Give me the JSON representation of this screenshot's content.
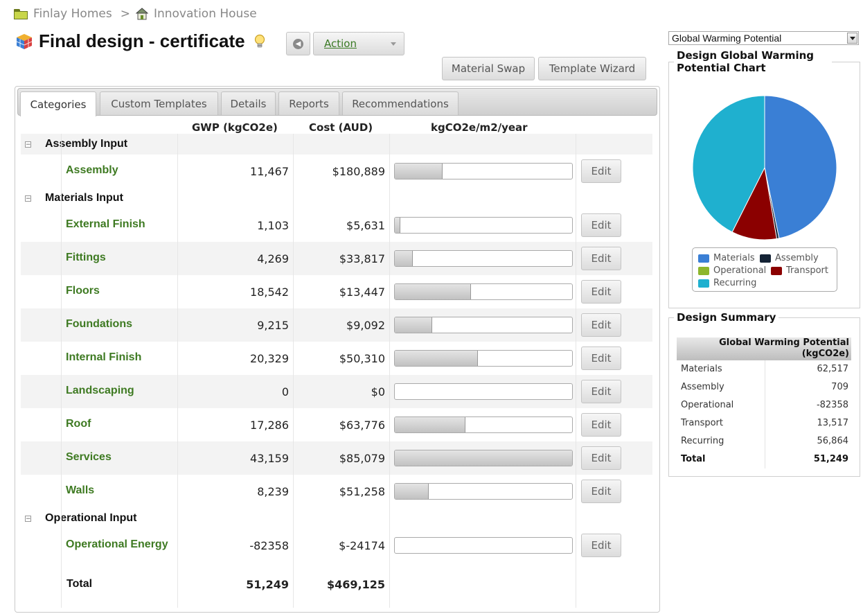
{
  "breadcrumb": {
    "root": "Finlay Homes",
    "separator": ">",
    "current": "Innovation House"
  },
  "page": {
    "title": "Final design - certificate"
  },
  "toolbar": {
    "action_label": "Action",
    "material_swap": "Material Swap",
    "template_wizard": "Template Wizard"
  },
  "tabs": [
    "Categories",
    "Custom Templates",
    "Details",
    "Reports",
    "Recommendations"
  ],
  "columns": {
    "gwp": "GWP (kgCO2e)",
    "cost": "Cost (AUD)",
    "intensity": "kgCO2e/m2/year"
  },
  "edit_label": "Edit",
  "sections": [
    {
      "label": "Assembly Input",
      "toggle": "−",
      "rows": [
        {
          "name": "Assembly",
          "gwp": "11,467",
          "cost": "$180,889",
          "bar": 0.27
        }
      ]
    },
    {
      "label": "Materials Input",
      "toggle": "−",
      "rows": [
        {
          "name": "External Finish",
          "gwp": "1,103",
          "cost": "$5,631",
          "bar": 0.03
        },
        {
          "name": "Fittings",
          "gwp": "4,269",
          "cost": "$33,817",
          "bar": 0.1
        },
        {
          "name": "Floors",
          "gwp": "18,542",
          "cost": "$13,447",
          "bar": 0.43
        },
        {
          "name": "Foundations",
          "gwp": "9,215",
          "cost": "$9,092",
          "bar": 0.21
        },
        {
          "name": "Internal Finish",
          "gwp": "20,329",
          "cost": "$50,310",
          "bar": 0.47
        },
        {
          "name": "Landscaping",
          "gwp": "0",
          "cost": "$0",
          "bar": 0
        },
        {
          "name": "Roof",
          "gwp": "17,286",
          "cost": "$63,776",
          "bar": 0.4
        },
        {
          "name": "Services",
          "gwp": "43,159",
          "cost": "$85,079",
          "bar": 1.0
        },
        {
          "name": "Walls",
          "gwp": "8,239",
          "cost": "$51,258",
          "bar": 0.19
        }
      ]
    },
    {
      "label": "Operational Input",
      "toggle": "−",
      "rows": [
        {
          "name": "Operational Energy",
          "gwp": "-82358",
          "cost": "$-24174",
          "bar": 0
        }
      ]
    }
  ],
  "total": {
    "label": "Total",
    "gwp": "51,249",
    "cost": "$469,125"
  },
  "metric_select": {
    "value": "Global Warming Potential"
  },
  "chart_panel": {
    "title": "Design Global Warming Potential Chart"
  },
  "chart_data": {
    "type": "pie",
    "title": "Design Global Warming Potential Chart",
    "slices": [
      {
        "label": "Materials",
        "value": 62517,
        "color": "#3a7fd5"
      },
      {
        "label": "Assembly",
        "value": 709,
        "color": "#142335"
      },
      {
        "label": "Operational",
        "value": 0,
        "color": "#8db62c"
      },
      {
        "label": "Transport",
        "value": 13517,
        "color": "#8b0000"
      },
      {
        "label": "Recurring",
        "value": 56864,
        "color": "#1fb0cf"
      }
    ],
    "legend": [
      "Materials",
      "Assembly",
      "Operational",
      "Transport",
      "Recurring"
    ],
    "legend_position": "bottom"
  },
  "summary": {
    "title": "Design Summary",
    "header": "Global Warming Potential (kgCO2e)",
    "rows": [
      {
        "label": "Materials",
        "value": "62,517"
      },
      {
        "label": "Assembly",
        "value": "709"
      },
      {
        "label": "Operational",
        "value": "-82358"
      },
      {
        "label": "Transport",
        "value": "13,517"
      },
      {
        "label": "Recurring",
        "value": "56,864"
      }
    ],
    "total": {
      "label": "Total",
      "value": "51,249"
    }
  }
}
